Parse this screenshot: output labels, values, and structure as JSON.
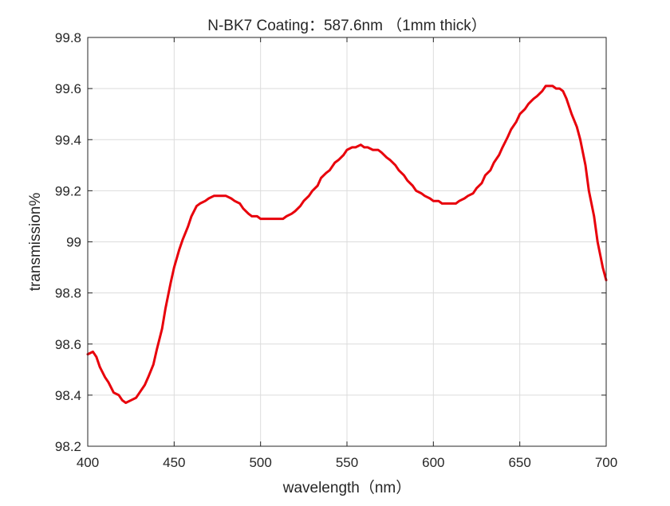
{
  "chart_data": {
    "type": "line",
    "title": "N-BK7 Coating：587.6nm （1mm thick）",
    "xlabel": "wavelength（nm）",
    "ylabel": "transmission%",
    "xlim": [
      400,
      700
    ],
    "ylim": [
      98.2,
      99.8
    ],
    "xticks": [
      "400",
      "450",
      "500",
      "550",
      "600",
      "650",
      "700"
    ],
    "yticks": [
      "98.2",
      "98.4",
      "98.6",
      "98.8",
      "99",
      "99.2",
      "99.4",
      "99.6",
      "99.8"
    ],
    "grid": true,
    "colors": {
      "line": "#e8000b",
      "grid": "#dcdcdc",
      "axis": "#262626"
    },
    "series": [
      {
        "x": [
          400,
          403,
          405,
          407,
          410,
          412,
          415,
          418,
          420,
          422,
          425,
          428,
          430,
          433,
          435,
          438,
          440,
          443,
          445,
          448,
          450,
          453,
          455,
          458,
          460,
          463,
          465,
          468,
          470,
          473,
          475,
          478,
          480,
          483,
          485,
          488,
          490,
          493,
          495,
          498,
          500,
          503,
          505,
          508,
          510,
          513,
          515,
          518,
          520,
          523,
          525,
          528,
          530,
          533,
          535,
          538,
          540,
          543,
          545,
          548,
          550,
          553,
          555,
          558,
          560,
          562,
          565,
          568,
          570,
          573,
          575,
          578,
          580,
          583,
          585,
          588,
          590,
          593,
          595,
          598,
          600,
          603,
          605,
          608,
          610,
          613,
          615,
          618,
          620,
          623,
          625,
          628,
          630,
          633,
          635,
          638,
          640,
          643,
          645,
          648,
          650,
          653,
          655,
          658,
          660,
          663,
          665,
          667,
          669,
          671,
          673,
          675,
          677,
          680,
          683,
          685,
          688,
          690,
          693,
          695,
          698,
          700
        ],
        "y": [
          98.56,
          98.57,
          98.55,
          98.51,
          98.47,
          98.45,
          98.41,
          98.4,
          98.38,
          98.37,
          98.38,
          98.39,
          98.41,
          98.44,
          98.47,
          98.52,
          98.58,
          98.66,
          98.74,
          98.84,
          98.9,
          98.97,
          99.01,
          99.06,
          99.1,
          99.14,
          99.15,
          99.16,
          99.17,
          99.18,
          99.18,
          99.18,
          99.18,
          99.17,
          99.16,
          99.15,
          99.13,
          99.11,
          99.1,
          99.1,
          99.09,
          99.09,
          99.09,
          99.09,
          99.09,
          99.09,
          99.1,
          99.11,
          99.12,
          99.14,
          99.16,
          99.18,
          99.2,
          99.22,
          99.25,
          99.27,
          99.28,
          99.31,
          99.32,
          99.34,
          99.36,
          99.37,
          99.37,
          99.38,
          99.37,
          99.37,
          99.36,
          99.36,
          99.35,
          99.33,
          99.32,
          99.3,
          99.28,
          99.26,
          99.24,
          99.22,
          99.2,
          99.19,
          99.18,
          99.17,
          99.16,
          99.16,
          99.15,
          99.15,
          99.15,
          99.15,
          99.16,
          99.17,
          99.18,
          99.19,
          99.21,
          99.23,
          99.26,
          99.28,
          99.31,
          99.34,
          99.37,
          99.41,
          99.44,
          99.47,
          99.5,
          99.52,
          99.54,
          99.56,
          99.57,
          99.59,
          99.61,
          99.61,
          99.61,
          99.6,
          99.6,
          99.59,
          99.56,
          99.5,
          99.45,
          99.4,
          99.3,
          99.2,
          99.1,
          99.0,
          98.9,
          98.85
        ]
      }
    ]
  }
}
